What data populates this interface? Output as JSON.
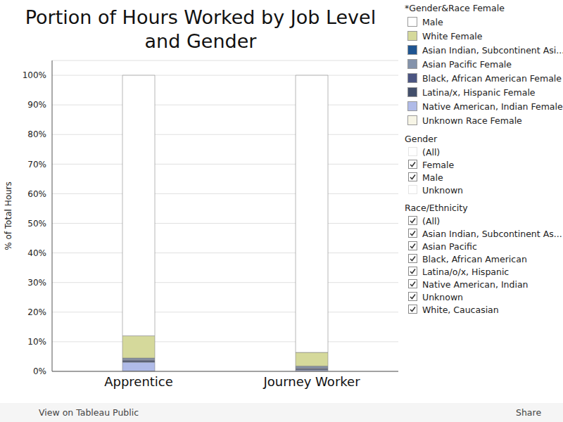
{
  "chart_data": {
    "type": "bar",
    "title": "Portion of Hours Worked by Job Level and Gender",
    "y_label": "% of Total Hours",
    "stacked": true,
    "grid": true,
    "legend": "right",
    "legend_title": "*Gender&Race Female",
    "categories": [
      "Apprentice",
      "Journey Worker"
    ],
    "series": [
      {
        "name": "Male",
        "color": "#ffffff",
        "values": [
          88.0,
          93.6
        ]
      },
      {
        "name": "White Female",
        "color": "#d5d99b",
        "values": [
          7.5,
          4.6
        ]
      },
      {
        "name": "Asian Indian, Subcontinent Asi...",
        "color": "#1f5591",
        "values": [
          0.1,
          0.1
        ]
      },
      {
        "name": "Asian Pacific Female",
        "color": "#8493ab",
        "values": [
          0.5,
          0.6
        ]
      },
      {
        "name": "Black, African American Female",
        "color": "#4b5582",
        "values": [
          0.3,
          0.2
        ]
      },
      {
        "name": "Latina/x, Hispanic Female",
        "color": "#434f6b",
        "values": [
          0.5,
          0.4
        ]
      },
      {
        "name": "Native American, Indian Female",
        "color": "#b0bbe8",
        "values": [
          3.0,
          0.4
        ]
      },
      {
        "name": "Unknown Race Female",
        "color": "#f7f5e6",
        "values": [
          0.1,
          0.1
        ]
      }
    ],
    "ylim": [
      0,
      105
    ],
    "yticks": [
      {
        "value": 0,
        "label": "0%"
      },
      {
        "value": 10,
        "label": "10%"
      },
      {
        "value": 20,
        "label": "20%"
      },
      {
        "value": 30,
        "label": "30%"
      },
      {
        "value": 40,
        "label": "40%"
      },
      {
        "value": 50,
        "label": "50%"
      },
      {
        "value": 60,
        "label": "60%"
      },
      {
        "value": 70,
        "label": "70%"
      },
      {
        "value": 80,
        "label": "80%"
      },
      {
        "value": 90,
        "label": "90%"
      },
      {
        "value": 100,
        "label": "100%"
      }
    ]
  },
  "filters": [
    {
      "title": "Gender",
      "items": [
        {
          "label": "(All)",
          "checked": false
        },
        {
          "label": "Female",
          "checked": true
        },
        {
          "label": "Male",
          "checked": true
        },
        {
          "label": "Unknown",
          "checked": false
        }
      ]
    },
    {
      "title": "Race/Ethnicity",
      "items": [
        {
          "label": "(All)",
          "checked": true
        },
        {
          "label": "Asian Indian, Subcontinent As...",
          "checked": true
        },
        {
          "label": "Asian Pacific",
          "checked": true
        },
        {
          "label": "Black, African American",
          "checked": true
        },
        {
          "label": "Latina/o/x, Hispanic",
          "checked": true
        },
        {
          "label": "Native American, Indian",
          "checked": true
        },
        {
          "label": "Unknown",
          "checked": true
        },
        {
          "label": "White, Caucasian",
          "checked": true
        }
      ]
    }
  ],
  "footer": {
    "left": "View on Tableau Public",
    "right": "Share"
  }
}
